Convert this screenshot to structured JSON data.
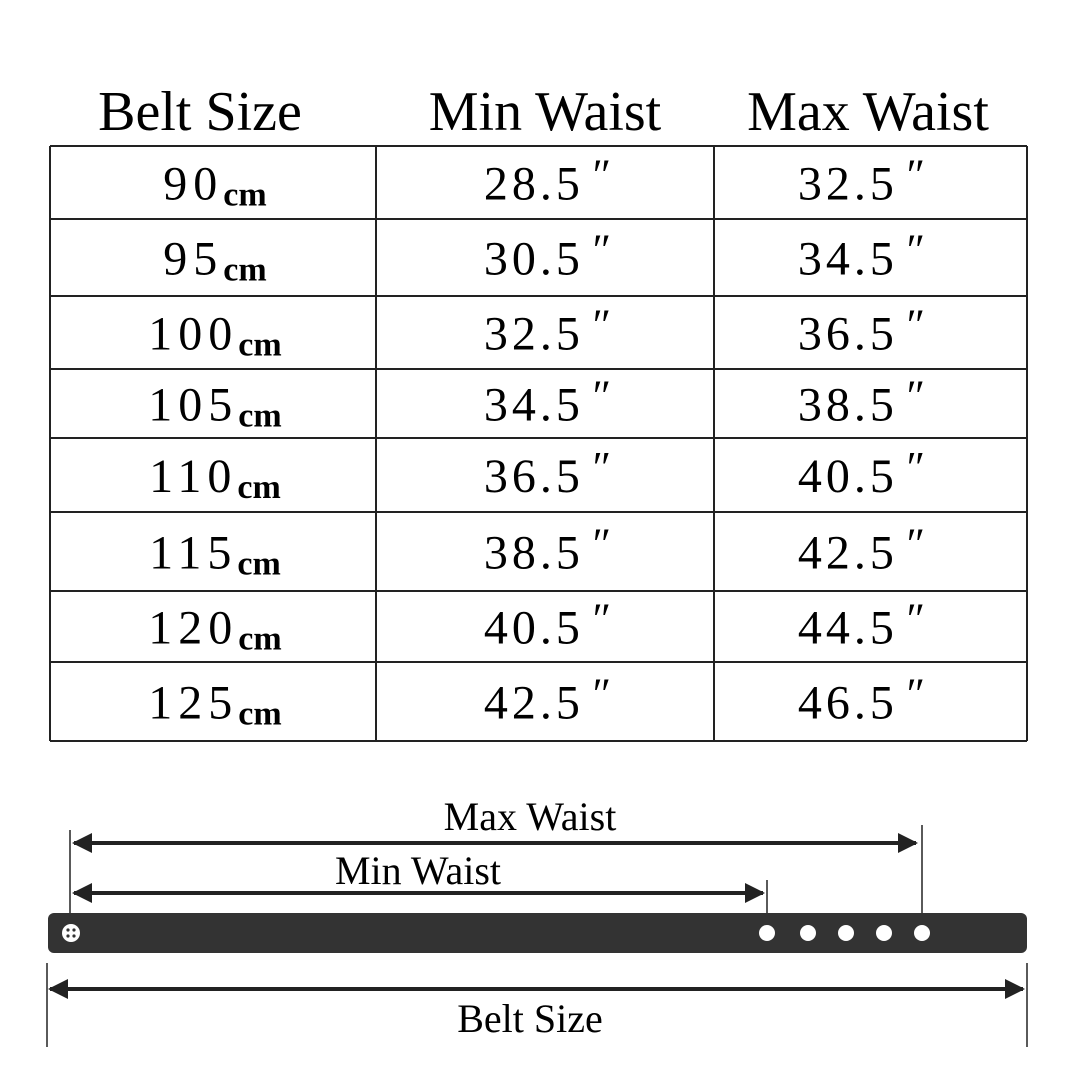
{
  "table": {
    "header": [
      "Belt Size",
      "Min Waist",
      "Max Waist"
    ],
    "units": {
      "size": "cm",
      "waist": "″"
    },
    "rows": [
      {
        "size": "90",
        "min": "28.5",
        "max": "32.5"
      },
      {
        "size": "95",
        "min": "30.5",
        "max": "34.5"
      },
      {
        "size": "100",
        "min": "32.5",
        "max": "36.5"
      },
      {
        "size": "105",
        "min": "34.5",
        "max": "38.5"
      },
      {
        "size": "110",
        "min": "36.5",
        "max": "40.5"
      },
      {
        "size": "115",
        "min": "38.5",
        "max": "42.5"
      },
      {
        "size": "120",
        "min": "40.5",
        "max": "44.5"
      },
      {
        "size": "125",
        "min": "42.5",
        "max": "46.5"
      }
    ]
  },
  "diagram": {
    "max_label": "Max Waist",
    "min_label": "Min Waist",
    "belt_label": "Belt Size"
  }
}
